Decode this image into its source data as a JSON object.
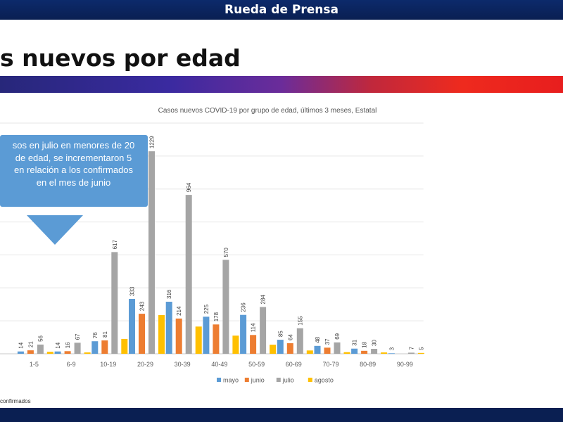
{
  "header": {
    "title": "Rueda de Prensa"
  },
  "slide": {
    "title": "s nuevos por edad"
  },
  "callout": {
    "lines": [
      "sos en julio en menores de 20",
      "de edad, se incrementaron 5",
      "en relación a los confirmados",
      "en el mes de junio"
    ]
  },
  "footnote": "confirmados",
  "colors": {
    "mayo": "#5b9bd5",
    "junio": "#ed7d31",
    "julio": "#a5a5a5",
    "agosto": "#ffc000"
  },
  "chart_data": {
    "type": "bar",
    "title": "Casos nuevos COVID-19 por grupo de edad, últimos 3 meses, Estatal",
    "categories": [
      "1-5",
      "6-9",
      "10-19",
      "20-29",
      "30-39",
      "40-49",
      "50-59",
      "60-69",
      "70-79",
      "80-89",
      "90-99"
    ],
    "series": [
      {
        "name": "mayo",
        "values": [
          14,
          14,
          76,
          333,
          316,
          225,
          236,
          85,
          48,
          31,
          3
        ],
        "labels": [
          "14",
          "14",
          "76",
          "333",
          "316",
          "225",
          "236",
          "85",
          "48",
          "31",
          "3"
        ]
      },
      {
        "name": "junio",
        "values": [
          21,
          16,
          81,
          243,
          214,
          178,
          114,
          64,
          37,
          18,
          null
        ],
        "labels": [
          "21",
          "16",
          "81",
          "243",
          "214",
          "178",
          "114",
          "64",
          "37",
          "18",
          ""
        ]
      },
      {
        "name": "julio",
        "values": [
          56,
          67,
          617,
          1229,
          964,
          570,
          284,
          155,
          69,
          30,
          7
        ],
        "labels": [
          "56",
          "67",
          "617",
          "1229",
          "964",
          "570",
          "284",
          "155",
          "69",
          "30",
          "7"
        ]
      },
      {
        "name": "agosto",
        "values": [
          12,
          8,
          90,
          235,
          165,
          110,
          55,
          20,
          10,
          8,
          5
        ],
        "labels": [
          "",
          "",
          "",
          "",
          "",
          "",
          "",
          "",
          "",
          "",
          "5"
        ]
      }
    ],
    "ylim": [
      0,
      1400
    ],
    "grid": true,
    "legend": "bottom"
  }
}
